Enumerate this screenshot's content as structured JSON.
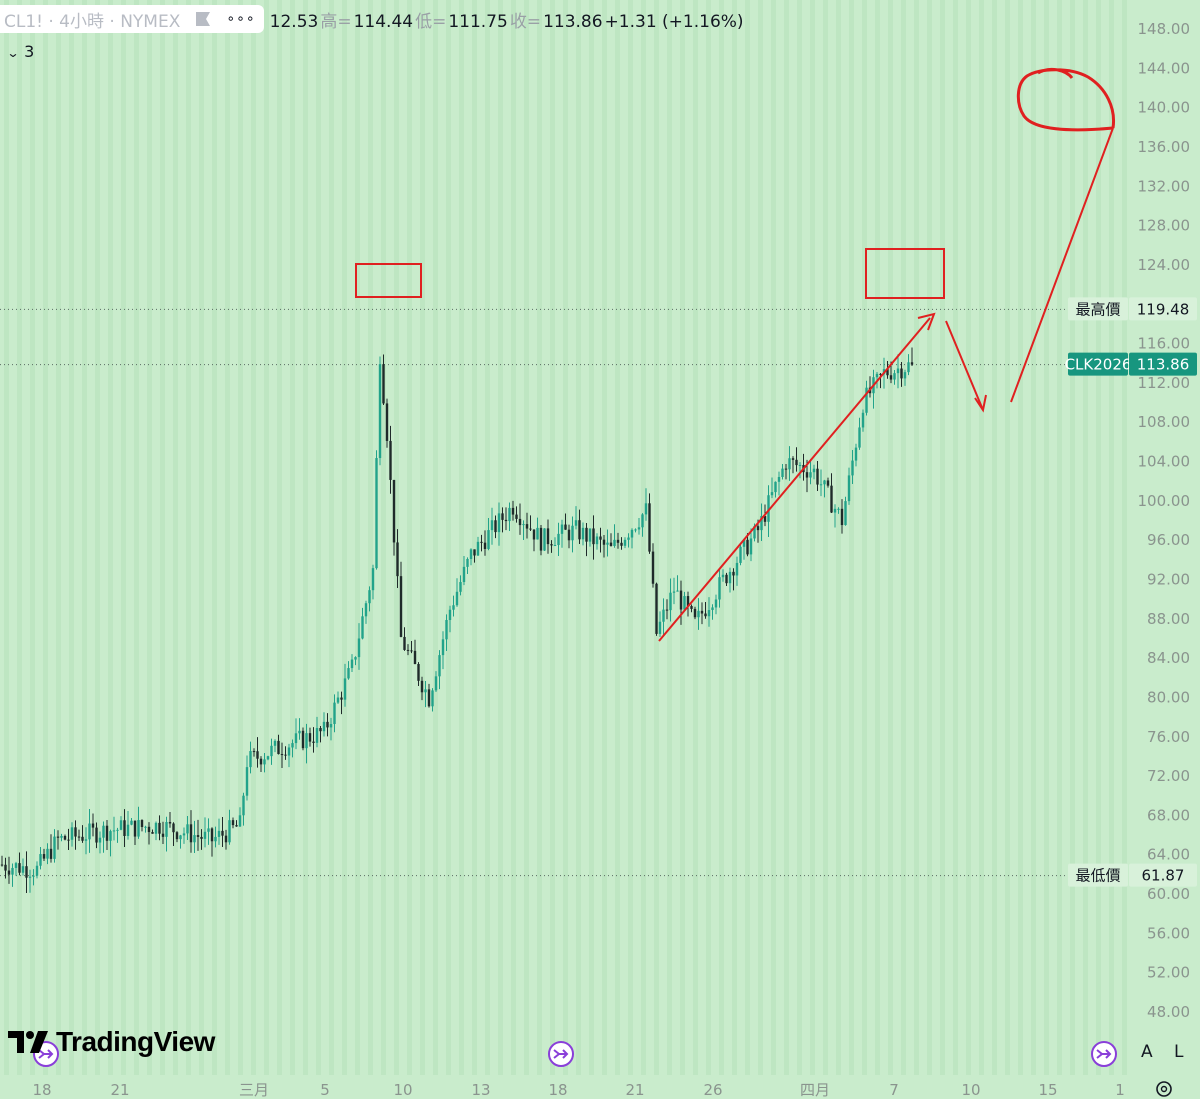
{
  "header": {
    "symbol": "CL1! · 4小時 · NYMEX",
    "open_fragment": "12.53",
    "high_label": "高=",
    "high_value": "114.44",
    "low_label": "低=",
    "low_value": "111.75",
    "close_label": "收=",
    "close_value": "113.86",
    "change": "+1.31 (+1.16%)",
    "more_menu": "∘∘∘"
  },
  "indicators_toggle": {
    "label": "3",
    "icon": "chevron-down-icon"
  },
  "branding": {
    "logo_text": "TradingView"
  },
  "bottom_buttons": {
    "auto_label": "A",
    "log_label": "L"
  },
  "price_tags": {
    "high_label": "最高價",
    "high_value": "119.48",
    "current_label": "CLK2026",
    "current_value": "113.86",
    "low_label": "最低價",
    "low_value": "61.87"
  },
  "colors": {
    "background": "#c9eccc",
    "up_candle": "#22a38a",
    "down_candle": "#1f2a2a",
    "annotation": "#e02020",
    "current_tag": "#17967f",
    "event_marker": "#8a3fd9"
  },
  "chart_data": {
    "type": "candlestick",
    "title": "CL1! · 4小時 · NYMEX",
    "y_axis_ticks": [
      148,
      144,
      140,
      136,
      132,
      128,
      124,
      120,
      116,
      112,
      108,
      104,
      100,
      96,
      92,
      88,
      84,
      80,
      76,
      72,
      68,
      64,
      60,
      56,
      52,
      48
    ],
    "ylim": [
      45,
      150
    ],
    "x_axis_labels": [
      "18",
      "21",
      "三月",
      "5",
      "10",
      "13",
      "18",
      "21",
      "26",
      "四月",
      "7",
      "10",
      "15",
      "1"
    ],
    "high_marker": 119.48,
    "low_marker": 61.87,
    "last_price": 113.86,
    "grid": "vertical",
    "approx_path": [
      {
        "bar": 0,
        "close": 63.0
      },
      {
        "bar": 10,
        "close": 62.5
      },
      {
        "bar": 16,
        "close": 65.5
      },
      {
        "bar": 30,
        "close": 66.5
      },
      {
        "bar": 45,
        "close": 67.0
      },
      {
        "bar": 60,
        "close": 65.5
      },
      {
        "bar": 68,
        "close": 67.0
      },
      {
        "bar": 70,
        "close": 73.5
      },
      {
        "bar": 80,
        "close": 75.0
      },
      {
        "bar": 92,
        "close": 76.5
      },
      {
        "bar": 100,
        "close": 83.0
      },
      {
        "bar": 106,
        "close": 93.0
      },
      {
        "bar": 108,
        "close": 115.0
      },
      {
        "bar": 110,
        "close": 107.0
      },
      {
        "bar": 114,
        "close": 86.0
      },
      {
        "bar": 122,
        "close": 80.0
      },
      {
        "bar": 128,
        "close": 89.0
      },
      {
        "bar": 134,
        "close": 94.5
      },
      {
        "bar": 146,
        "close": 99.5
      },
      {
        "bar": 154,
        "close": 96.0
      },
      {
        "bar": 164,
        "close": 97.0
      },
      {
        "bar": 174,
        "close": 95.0
      },
      {
        "bar": 184,
        "close": 99.0
      },
      {
        "bar": 187,
        "close": 86.5
      },
      {
        "bar": 192,
        "close": 91.0
      },
      {
        "bar": 198,
        "close": 87.5
      },
      {
        "bar": 208,
        "close": 93.0
      },
      {
        "bar": 216,
        "close": 97.0
      },
      {
        "bar": 224,
        "close": 104.0
      },
      {
        "bar": 232,
        "close": 103.0
      },
      {
        "bar": 240,
        "close": 98.0
      },
      {
        "bar": 246,
        "close": 110.0
      },
      {
        "bar": 252,
        "close": 113.0
      },
      {
        "bar": 260,
        "close": 113.86
      }
    ]
  }
}
